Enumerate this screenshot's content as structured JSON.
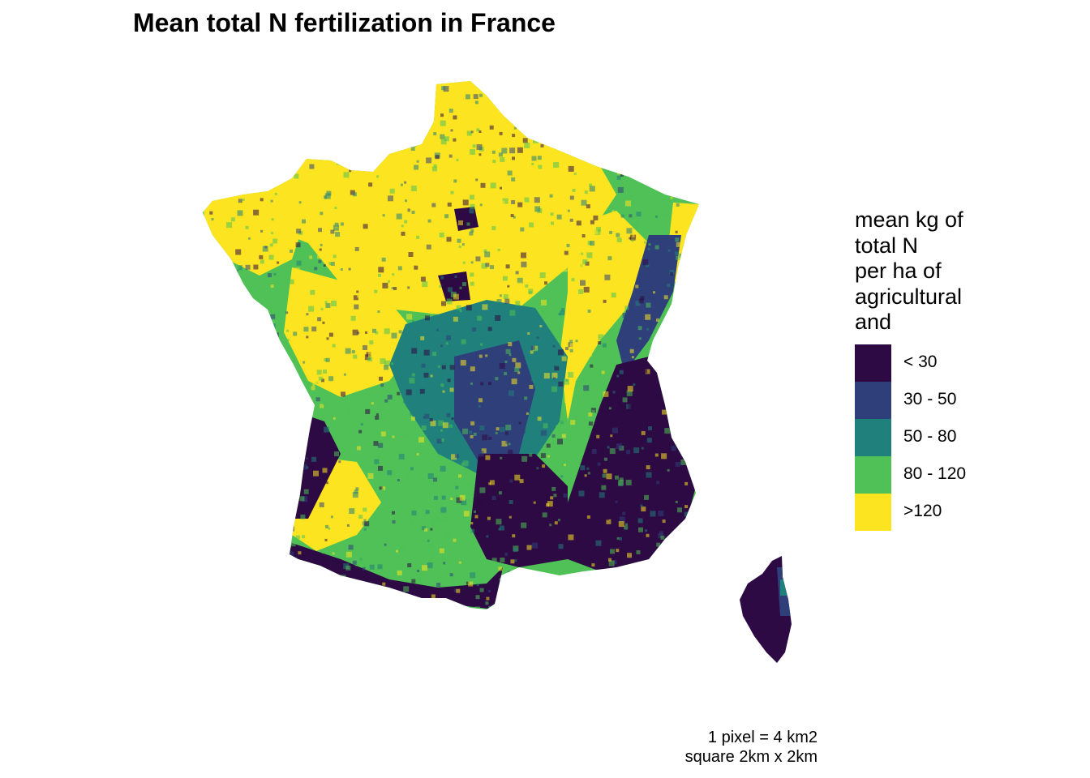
{
  "title": "Mean total N fertilization in France",
  "legend": {
    "title_lines": [
      "mean kg of",
      "total N",
      "per ha of",
      "agricultural",
      "and"
    ],
    "items": [
      {
        "label": "< 30",
        "color": "#2d0a44"
      },
      {
        "label": "30 - 50",
        "color": "#2f3f7a"
      },
      {
        "label": "50 - 80",
        "color": "#20807b"
      },
      {
        "label": "80 - 120",
        "color": "#4fc156"
      },
      {
        "label": ">120",
        "color": "#fce520"
      }
    ]
  },
  "caption": [
    "1 pixel = 4 km2",
    "square 2km x 2km"
  ]
}
